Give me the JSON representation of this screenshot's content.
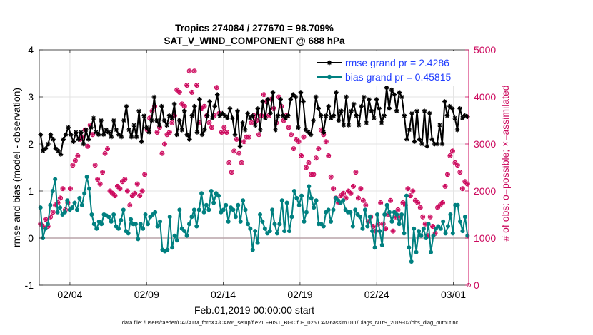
{
  "chart_data": {
    "type": "line",
    "title": "Tropics 274084 / 277670 = 98.709%",
    "subtitle": "SAT_V_WIND_COMPONENT @ 688 hPa",
    "xlabel": "Feb.01,2019 00:00:00 start",
    "ylabel": "rmse and bias (model - observation)",
    "y2label": "# of obs: o=possible; ×=assimilated",
    "xlim": [
      1,
      29
    ],
    "ylim": [
      -1,
      4
    ],
    "y2lim": [
      0,
      5000
    ],
    "x_ticks": [
      3,
      8,
      13,
      18,
      23,
      28
    ],
    "x_tick_labels": [
      "02/04",
      "02/09",
      "02/14",
      "02/19",
      "02/24",
      "03/01"
    ],
    "y_ticks": [
      -1,
      0,
      1,
      2,
      3,
      4
    ],
    "y_tick_labels": [
      "-1",
      "0",
      "1",
      "2",
      "3",
      "4"
    ],
    "y2_ticks": [
      0,
      1000,
      2000,
      3000,
      4000,
      5000
    ],
    "y2_tick_labels": [
      "0",
      "1000",
      "2000",
      "3000",
      "4000",
      "5000"
    ],
    "grid": true,
    "legend_position": "top-right",
    "colors": {
      "rmse": "#000000",
      "bias": "#008080",
      "obs": "#cc0a5e",
      "zero_line": "#b9a3a9",
      "legend_text": "#1f3cff"
    },
    "series": [
      {
        "name": "rmse grand pr = 2.4286",
        "marker": "asterisk",
        "values": [
          2.2,
          1.86,
          1.9,
          2.0,
          2.2,
          2.1,
          1.9,
          1.85,
          1.78,
          2.1,
          2.2,
          2.35,
          2.2,
          2.05,
          2.25,
          2.1,
          2.25,
          2.0,
          2.3,
          2.1,
          2.35,
          2.55,
          2.25,
          2.2,
          2.5,
          2.2,
          2.3,
          2.25,
          2.15,
          2.5,
          2.3,
          2.2,
          2.15,
          2.5,
          2.8,
          2.3,
          2.15,
          2.4,
          2.15,
          2.7,
          2.05,
          2.6,
          2.35,
          2.25,
          2.5,
          3.0,
          2.5,
          2.4,
          2.8,
          2.5,
          2.4,
          2.6,
          2.55,
          2.85,
          2.2,
          2.5,
          2.3,
          2.7,
          2.2,
          2.1,
          2.6,
          2.8,
          2.25,
          2.95,
          2.2,
          2.3,
          2.6,
          2.9,
          2.55,
          2.8,
          3.05,
          2.6,
          2.65,
          2.6,
          2.55,
          2.75,
          2.55,
          2.2,
          2.7,
          1.95,
          2.45,
          2.3,
          2.65,
          2.55,
          2.6,
          2.4,
          2.75,
          2.3,
          2.9,
          2.55,
          2.95,
          2.65,
          3.1,
          2.3,
          2.6,
          2.95,
          2.6,
          2.55,
          2.6,
          2.95,
          3.05,
          3.0,
          2.35,
          3.1,
          2.9,
          2.3,
          2.25,
          2.2,
          2.5,
          3.0,
          2.75,
          2.6,
          2.25,
          2.6,
          2.8,
          2.55,
          2.6,
          3.1,
          2.5,
          2.7,
          2.4,
          3.0,
          2.4,
          2.7,
          2.85,
          2.6,
          2.4,
          2.8,
          3.0,
          2.45,
          2.95,
          2.7,
          2.55,
          2.95,
          2.75,
          2.45,
          2.6,
          3.2,
          2.75,
          3.15,
          3.05,
          2.7,
          3.1,
          3.0,
          2.6,
          2.1,
          2.3,
          2.65,
          2.05,
          2.7,
          2.1,
          2.0,
          2.7,
          1.95,
          2.65,
          2.1,
          2.0,
          2.0,
          2.4,
          2.0,
          2.9,
          2.6,
          2.8,
          2.75,
          2.55,
          2.3,
          2.75,
          2.55,
          2.6,
          2.58
        ]
      },
      {
        "name": "bias grand pr = 0.45815",
        "marker": "circle",
        "values": [
          0.65,
          0.0,
          0.2,
          0.3,
          0.7,
          1.0,
          1.25,
          0.55,
          0.65,
          0.5,
          0.55,
          0.8,
          0.6,
          0.65,
          0.75,
          0.6,
          0.85,
          0.7,
          0.95,
          1.3,
          1.05,
          0.5,
          0.3,
          0.2,
          0.35,
          0.3,
          0.5,
          0.48,
          0.45,
          0.35,
          0.5,
          0.25,
          0.2,
          0.38,
          0.6,
          0.15,
          0.1,
          0.4,
          0.3,
          0.3,
          -0.02,
          0.3,
          0.2,
          0.5,
          0.3,
          0.45,
          0.5,
          0.55,
          0.25,
          0.35,
          -0.25,
          -0.28,
          -0.25,
          0.45,
          -0.2,
          0.05,
          -0.05,
          0.6,
          0.2,
          0.15,
          0.05,
          0.3,
          0.45,
          0.6,
          0.25,
          0.6,
          0.95,
          0.55,
          0.7,
          0.6,
          1.0,
          0.75,
          0.95,
          0.9,
          0.55,
          0.6,
          0.7,
          0.35,
          0.65,
          0.6,
          0.45,
          0.7,
          0.35,
          0.8,
          0.6,
          0.3,
          0.2,
          -0.25,
          0.15,
          -0.1,
          0.5,
          0.35,
          0.2,
          0.1,
          0.15,
          0.6,
          0.3,
          0.1,
          0.3,
          0.8,
          0.15,
          0.75,
          0.15,
          0.45,
          1.0,
          0.85,
          0.7,
          0.9,
          0.35,
          0.55,
          1.1,
          0.85,
          0.65,
          0.8,
          0.3,
          0.3,
          0.25,
          0.55,
          0.6,
          0.35,
          0.6,
          0.85,
          0.8,
          0.75,
          0.8,
          0.6,
          0.55,
          0.55,
          0.25,
          0.6,
          0.5,
          0.45,
          0.2,
          0.6,
          0.25,
          0.45,
          0.15,
          -0.2,
          0.5,
          0.15,
          -0.15,
          0.5,
          0.7,
          0.55,
          0.35,
          0.55,
          0.5,
          0.3,
          0.5,
          0.1,
          0.9,
          -0.2,
          -0.5,
          0.2,
          -0.3,
          0.15,
          0.05,
          0.2,
          0.0,
          0.3,
          -0.3,
          0.05,
          0.2,
          0.25,
          0.2,
          0.35,
          0.1,
          0.25,
          0.5,
          0.1,
          0.7,
          0.7,
          0.35,
          0.15,
          0.45,
          0.05
        ]
      }
    ],
    "obs_possible": [
      1300,
      1250,
      1400,
      1250,
      1450,
      1550,
      1700,
      1750,
      1850,
      2050,
      1600,
      1750,
      2050,
      2550,
      2650,
      2750,
      3100,
      3150,
      3300,
      2950,
      3400,
      3200,
      2550,
      2250,
      2150,
      2400,
      2800,
      2900,
      2000,
      1950,
      1900,
      2100,
      2050,
      2200,
      2250,
      2000,
      1700,
      1900,
      1950,
      2150,
      1900,
      2000,
      2350,
      3300,
      3550,
      3700,
      3800,
      3250,
      3350,
      2800,
      3000,
      3200,
      3250,
      3450,
      3600,
      4150,
      4100,
      3850,
      3800,
      4250,
      4550,
      4100,
      4550,
      4250,
      3450,
      3750,
      3800,
      3600,
      3450,
      3350,
      3600,
      4200,
      3650,
      3250,
      3350,
      3250,
      2600,
      2400,
      2850,
      3100,
      2800,
      2600,
      3050,
      3150,
      3150,
      3450,
      3600,
      3500,
      3200,
      3600,
      4050,
      3900,
      3600,
      3950,
      3750,
      3450,
      4000,
      3800,
      3500,
      3600,
      3350,
      3200,
      2900,
      3100,
      3050,
      2750,
      3150,
      2500,
      2600,
      2350,
      2350,
      2700,
      2900,
      3300,
      3200,
      3050,
      2750,
      2300,
      2050,
      1850,
      1750,
      1900,
      1950,
      1850,
      2000,
      1950,
      2100,
      2400,
      1850,
      2050,
      1800,
      1700,
      1350,
      1450,
      1250,
      1150,
      1300,
      1750,
      1300,
      1200,
      1500,
      1800,
      1150,
      1450,
      1600,
      1450,
      1750,
      1700,
      2050,
      1900,
      2000,
      1800,
      1750,
      1650,
      1450,
      1300,
      1050,
      1450,
      1250,
      1100,
      1650,
      1700,
      1750,
      2100,
      2350,
      2750,
      2850,
      2600,
      2550,
      2400,
      2050,
      2200,
      2150
    ]
  },
  "footer": "data file: /Users/raeder/DAI/ATM_forcXX/CAM6_setup/f.e21.FHIST_BGC.f09_025.CAM6assim.011/Diags_NTrS_2019-02/obs_diag_output.nc"
}
